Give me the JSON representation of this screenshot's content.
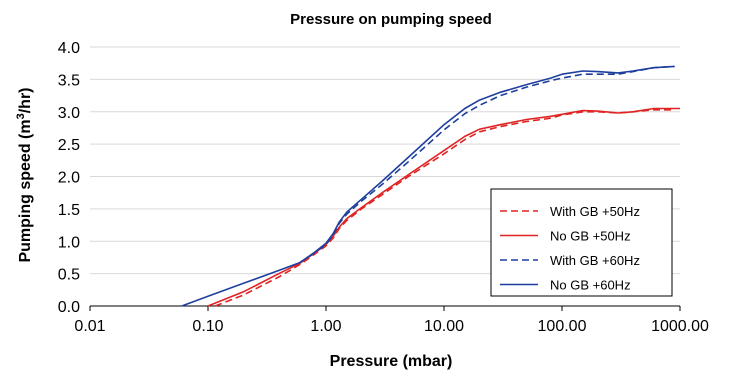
{
  "chart_data": {
    "type": "line",
    "title": "Pressure on pumping speed",
    "xlabel": "Pressure (mbar)",
    "ylabel_main": "Pumping speed (m",
    "ylabel_sup": "3",
    "ylabel_end": "/hr)",
    "x_scale": "log",
    "xlim": [
      0.01,
      1000
    ],
    "ylim": [
      0,
      4
    ],
    "x_ticks": [
      {
        "value": 0.01,
        "label": "0.01"
      },
      {
        "value": 0.1,
        "label": "0.10"
      },
      {
        "value": 1,
        "label": "1.00"
      },
      {
        "value": 10,
        "label": "10.00"
      },
      {
        "value": 100,
        "label": "100.00"
      },
      {
        "value": 1000,
        "label": "1000.00"
      }
    ],
    "y_ticks": [
      {
        "value": 0.0,
        "label": "0.0"
      },
      {
        "value": 0.5,
        "label": "0.5"
      },
      {
        "value": 1.0,
        "label": "1.0"
      },
      {
        "value": 1.5,
        "label": "1.5"
      },
      {
        "value": 2.0,
        "label": "2.0"
      },
      {
        "value": 2.5,
        "label": "2.5"
      },
      {
        "value": 3.0,
        "label": "3.0"
      },
      {
        "value": 3.5,
        "label": "3.5"
      },
      {
        "value": 4.0,
        "label": "4.0"
      }
    ],
    "grid": "horizontal",
    "legend_position": "bottom-right",
    "series": [
      {
        "name": "With GB +50Hz",
        "color": "#e02424",
        "dash": "dashed",
        "points": [
          [
            0.115,
            0.0
          ],
          [
            0.2,
            0.17
          ],
          [
            0.4,
            0.45
          ],
          [
            0.6,
            0.64
          ],
          [
            0.8,
            0.8
          ],
          [
            1.0,
            0.93
          ],
          [
            1.15,
            1.05
          ],
          [
            1.3,
            1.2
          ],
          [
            1.5,
            1.32
          ],
          [
            2.0,
            1.5
          ],
          [
            3.0,
            1.72
          ],
          [
            5.0,
            2.0
          ],
          [
            10.0,
            2.35
          ],
          [
            15.0,
            2.57
          ],
          [
            20.0,
            2.69
          ],
          [
            30.0,
            2.77
          ],
          [
            50.0,
            2.85
          ],
          [
            80.0,
            2.9
          ],
          [
            100.0,
            2.95
          ],
          [
            150.0,
            3.0
          ],
          [
            200.0,
            3.0
          ],
          [
            300.0,
            2.98
          ],
          [
            400.0,
            3.0
          ],
          [
            600.0,
            3.03
          ],
          [
            900.0,
            3.03
          ]
        ]
      },
      {
        "name": "No GB +50Hz",
        "color": "#e02424",
        "dash": "solid",
        "points": [
          [
            0.1,
            0.0
          ],
          [
            0.2,
            0.22
          ],
          [
            0.4,
            0.5
          ],
          [
            0.6,
            0.66
          ],
          [
            0.8,
            0.82
          ],
          [
            1.0,
            0.95
          ],
          [
            1.15,
            1.08
          ],
          [
            1.3,
            1.22
          ],
          [
            1.5,
            1.35
          ],
          [
            2.0,
            1.52
          ],
          [
            3.0,
            1.75
          ],
          [
            5.0,
            2.03
          ],
          [
            10.0,
            2.4
          ],
          [
            15.0,
            2.62
          ],
          [
            20.0,
            2.73
          ],
          [
            30.0,
            2.8
          ],
          [
            50.0,
            2.88
          ],
          [
            80.0,
            2.93
          ],
          [
            100.0,
            2.96
          ],
          [
            150.0,
            3.02
          ],
          [
            200.0,
            3.01
          ],
          [
            300.0,
            2.98
          ],
          [
            400.0,
            3.0
          ],
          [
            600.0,
            3.05
          ],
          [
            1000.0,
            3.05
          ]
        ]
      },
      {
        "name": "With GB +60Hz",
        "color": "#1f3f9f",
        "dash": "dashed",
        "points": [
          [
            0.6,
            0.67
          ],
          [
            0.8,
            0.82
          ],
          [
            1.0,
            0.95
          ],
          [
            1.15,
            1.1
          ],
          [
            1.3,
            1.28
          ],
          [
            1.5,
            1.42
          ],
          [
            2.0,
            1.62
          ],
          [
            3.0,
            1.88
          ],
          [
            5.0,
            2.23
          ],
          [
            10.0,
            2.72
          ],
          [
            15.0,
            2.97
          ],
          [
            20.0,
            3.1
          ],
          [
            30.0,
            3.25
          ],
          [
            50.0,
            3.38
          ],
          [
            80.0,
            3.48
          ],
          [
            100.0,
            3.52
          ],
          [
            150.0,
            3.58
          ],
          [
            200.0,
            3.58
          ],
          [
            300.0,
            3.58
          ],
          [
            400.0,
            3.62
          ],
          [
            600.0,
            3.68
          ],
          [
            900.0,
            3.7
          ]
        ]
      },
      {
        "name": "No GB +60Hz",
        "color": "#1f3f9f",
        "dash": "solid",
        "points": [
          [
            0.06,
            0.0
          ],
          [
            0.1,
            0.15
          ],
          [
            0.2,
            0.35
          ],
          [
            0.4,
            0.55
          ],
          [
            0.6,
            0.67
          ],
          [
            0.8,
            0.83
          ],
          [
            1.0,
            0.97
          ],
          [
            1.15,
            1.12
          ],
          [
            1.3,
            1.3
          ],
          [
            1.5,
            1.45
          ],
          [
            2.0,
            1.65
          ],
          [
            3.0,
            1.93
          ],
          [
            5.0,
            2.3
          ],
          [
            10.0,
            2.8
          ],
          [
            15.0,
            3.05
          ],
          [
            20.0,
            3.18
          ],
          [
            30.0,
            3.3
          ],
          [
            50.0,
            3.42
          ],
          [
            80.0,
            3.52
          ],
          [
            100.0,
            3.58
          ],
          [
            150.0,
            3.63
          ],
          [
            200.0,
            3.62
          ],
          [
            300.0,
            3.6
          ],
          [
            400.0,
            3.63
          ],
          [
            600.0,
            3.68
          ],
          [
            900.0,
            3.7
          ]
        ]
      }
    ]
  }
}
